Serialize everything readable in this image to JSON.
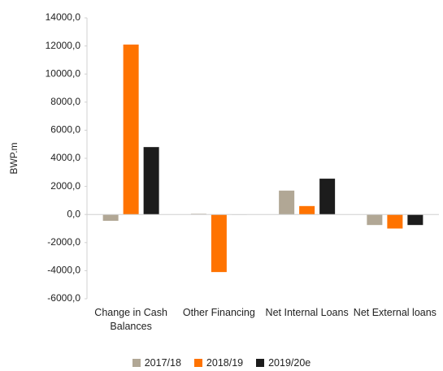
{
  "chart_data": {
    "type": "bar",
    "y_label": "BWP.m",
    "categories": [
      "Change in Cash Balances",
      "Other Financing",
      "Net Internal Loans",
      "Net External loans"
    ],
    "series": [
      {
        "name": "2017/18",
        "color": "#b1a795",
        "values": [
          -450,
          50,
          1700,
          -750
        ]
      },
      {
        "name": "2018/19",
        "color": "#ff7300",
        "values": [
          12100,
          -4100,
          600,
          -1000
        ]
      },
      {
        "name": "2019/20e",
        "color": "#1c1c1c",
        "values": [
          4800,
          -20,
          2550,
          -750
        ]
      }
    ],
    "ylim": [
      -6000,
      14000
    ],
    "yticks": [
      {
        "value": -6000,
        "label": "-6000,0"
      },
      {
        "value": -4000,
        "label": "-4000,0"
      },
      {
        "value": -2000,
        "label": "-2000,0"
      },
      {
        "value": 0,
        "label": "0,0"
      },
      {
        "value": 2000,
        "label": "2000,0"
      },
      {
        "value": 4000,
        "label": "4000,0"
      },
      {
        "value": 6000,
        "label": "6000,0"
      },
      {
        "value": 8000,
        "label": "8000,0"
      },
      {
        "value": 10000,
        "label": "10000,0"
      },
      {
        "value": 12000,
        "label": "12000,0"
      },
      {
        "value": 14000,
        "label": "14000,0"
      }
    ],
    "grid": false,
    "legend": "bottom"
  }
}
